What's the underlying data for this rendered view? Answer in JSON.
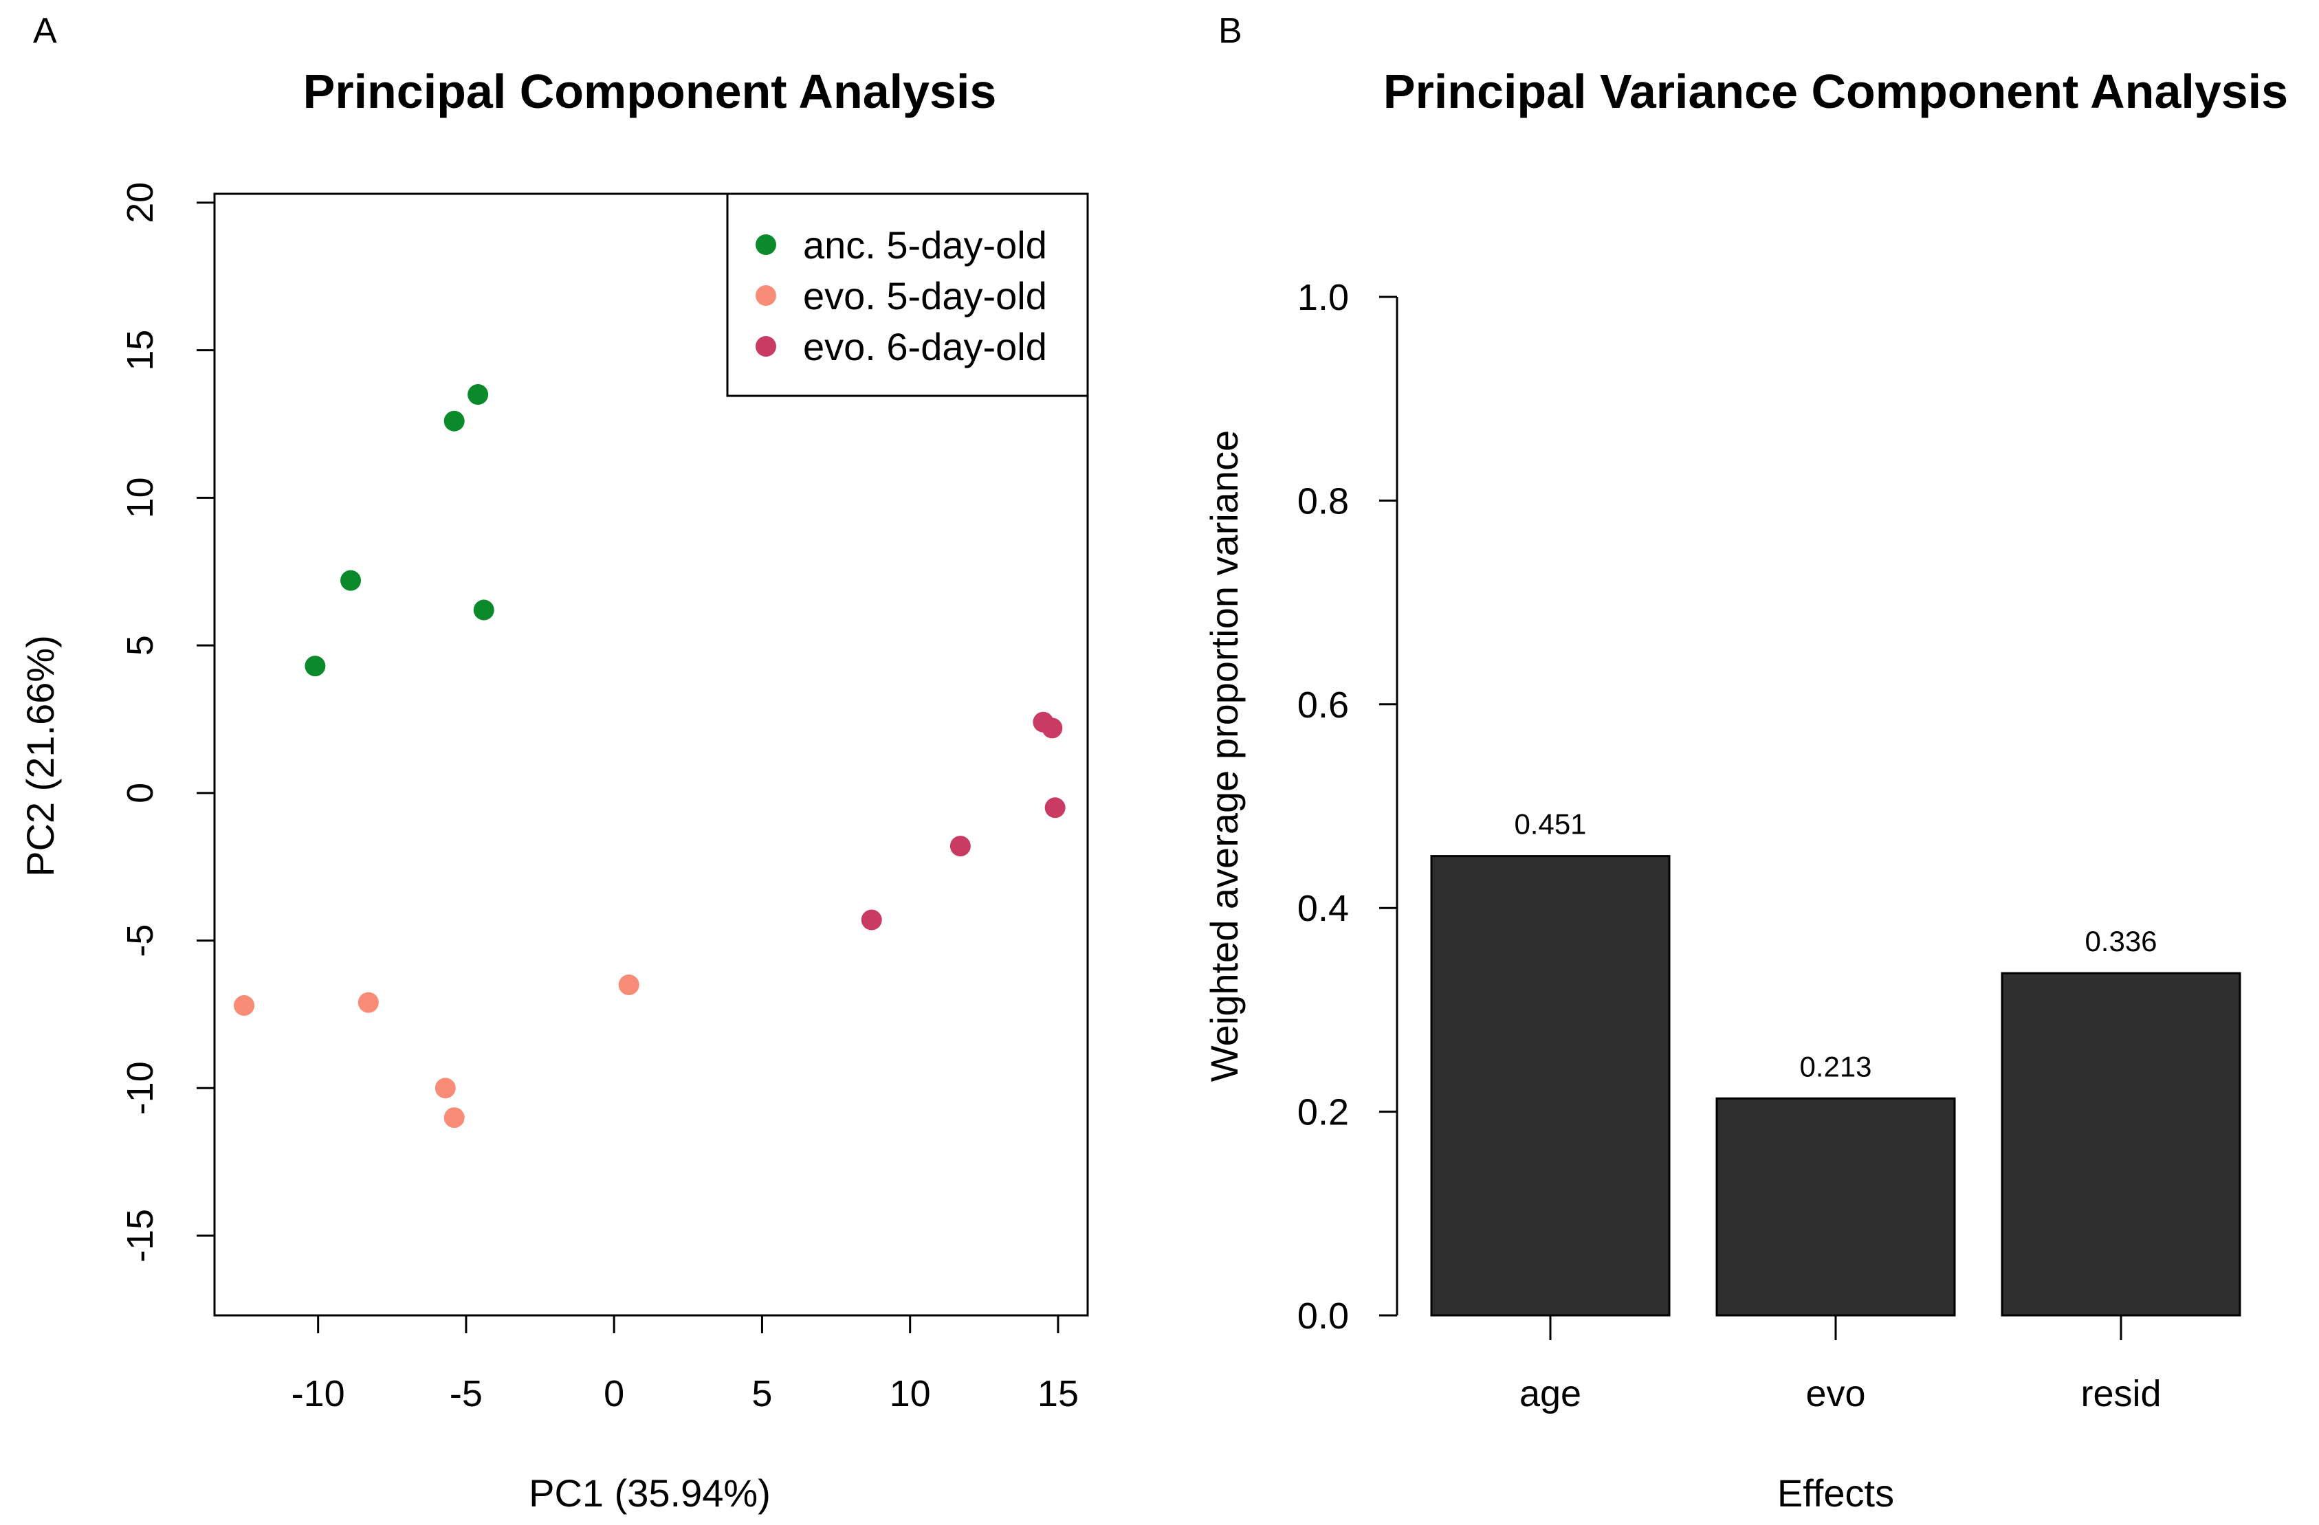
{
  "figure": {
    "panel_a_letter": "A",
    "panel_b_letter": "B"
  },
  "chart_data": [
    {
      "type": "scatter",
      "title": "Principal Component Analysis",
      "xlabel": "PC1 (35.94%)",
      "ylabel": "PC2 (21.66%)",
      "xlim": [
        -13.5,
        16
      ],
      "ylim": [
        -17.7,
        20.3
      ],
      "xticks": [
        -10,
        -5,
        0,
        5,
        10,
        15
      ],
      "yticks": [
        -15,
        -10,
        -5,
        0,
        5,
        10,
        15,
        20
      ],
      "legend_position": "top-right",
      "series": [
        {
          "name": "anc. 5-day-old",
          "color": "#0a8a2a",
          "points": [
            [
              -4.6,
              13.5
            ],
            [
              -5.4,
              12.6
            ],
            [
              -8.9,
              7.2
            ],
            [
              -4.4,
              6.2
            ],
            [
              -10.1,
              4.3
            ]
          ]
        },
        {
          "name": "evo. 5-day-old",
          "color": "#f98c76",
          "points": [
            [
              -12.5,
              -7.2
            ],
            [
              -8.3,
              -7.1
            ],
            [
              0.5,
              -6.5
            ],
            [
              -5.7,
              -10.0
            ],
            [
              -5.4,
              -11.0
            ]
          ]
        },
        {
          "name": "evo. 6-day-old",
          "color": "#c93b63",
          "points": [
            [
              14.5,
              2.4
            ],
            [
              14.8,
              2.2
            ],
            [
              14.9,
              -0.5
            ],
            [
              11.7,
              -1.8
            ],
            [
              8.7,
              -4.3
            ]
          ]
        }
      ]
    },
    {
      "type": "bar",
      "title": "Principal Variance Component Analysis",
      "xlabel": "Effects",
      "ylabel": "Weighted average proportion variance",
      "ylim": [
        0,
        1.0
      ],
      "yticks": [
        "0.0",
        "0.2",
        "0.4",
        "0.6",
        "0.8",
        "1.0"
      ],
      "categories": [
        "age",
        "evo",
        "resid"
      ],
      "values": [
        0.451,
        0.213,
        0.336
      ],
      "value_labels": [
        "0.451",
        "0.213",
        "0.336"
      ],
      "bar_color": "#2f2f2f"
    }
  ]
}
